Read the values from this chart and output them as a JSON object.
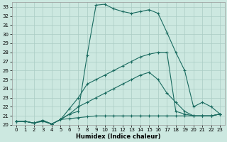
{
  "xlabel": "Humidex (Indice chaleur)",
  "ylabel": "",
  "background_color": "#cce8e0",
  "grid_color": "#aaccc4",
  "line_color": "#1a6b60",
  "xlim": [
    -0.5,
    23.5
  ],
  "ylim": [
    20,
    33.5
  ],
  "xticks": [
    0,
    1,
    2,
    3,
    4,
    5,
    6,
    7,
    8,
    9,
    10,
    11,
    12,
    13,
    14,
    15,
    16,
    17,
    18,
    19,
    20,
    21,
    22,
    23
  ],
  "yticks": [
    20,
    21,
    22,
    23,
    24,
    25,
    26,
    27,
    28,
    29,
    30,
    31,
    32,
    33
  ],
  "line1_x": [
    0,
    1,
    2,
    3,
    4,
    5,
    6,
    7,
    8,
    9,
    10,
    11,
    12,
    13,
    14,
    15,
    16,
    17,
    18,
    19,
    20,
    21,
    22,
    23
  ],
  "line1_y": [
    20.4,
    20.4,
    20.2,
    20.5,
    20.1,
    20.6,
    21.2,
    21.5,
    27.7,
    33.2,
    33.3,
    32.8,
    32.5,
    32.3,
    32.5,
    32.7,
    32.3,
    30.2,
    28.0,
    26.0,
    22.0,
    22.5,
    22.0,
    21.2
  ],
  "line2_x": [
    0,
    1,
    2,
    3,
    4,
    5,
    6,
    7,
    8,
    9,
    10,
    11,
    12,
    13,
    14,
    15,
    16,
    17,
    18,
    19,
    20,
    21,
    22,
    23
  ],
  "line2_y": [
    20.4,
    20.4,
    20.2,
    20.5,
    20.1,
    20.6,
    21.8,
    23.0,
    24.5,
    25.0,
    25.5,
    26.0,
    26.5,
    27.0,
    27.5,
    27.8,
    28.0,
    28.0,
    21.5,
    21.2,
    21.0,
    21.0,
    21.0,
    21.2
  ],
  "line3_x": [
    0,
    1,
    2,
    3,
    4,
    5,
    6,
    7,
    8,
    9,
    10,
    11,
    12,
    13,
    14,
    15,
    16,
    17,
    18,
    19,
    20,
    21,
    22,
    23
  ],
  "line3_y": [
    20.4,
    20.4,
    20.2,
    20.5,
    20.1,
    20.6,
    21.2,
    22.0,
    22.5,
    23.0,
    23.5,
    24.0,
    24.5,
    25.0,
    25.5,
    25.8,
    25.0,
    23.5,
    22.5,
    21.5,
    21.0,
    21.0,
    21.0,
    21.2
  ],
  "line4_x": [
    0,
    1,
    2,
    3,
    4,
    5,
    6,
    7,
    8,
    9,
    10,
    11,
    12,
    13,
    14,
    15,
    16,
    17,
    18,
    19,
    20,
    21,
    22,
    23
  ],
  "line4_y": [
    20.4,
    20.4,
    20.2,
    20.4,
    20.1,
    20.6,
    20.7,
    20.8,
    20.9,
    21.0,
    21.0,
    21.0,
    21.0,
    21.0,
    21.0,
    21.0,
    21.0,
    21.0,
    21.0,
    21.0,
    21.0,
    21.0,
    21.0,
    21.2
  ]
}
